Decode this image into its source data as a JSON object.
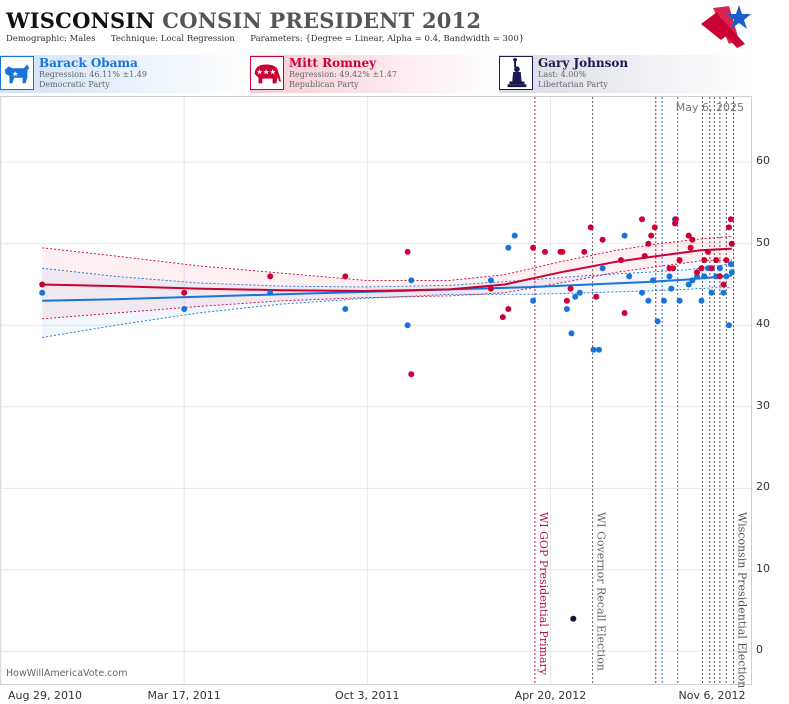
{
  "header": {
    "title_part1": "WISCONSIN",
    "title_part2": "CONSIN PRESIDENT 2012",
    "demographic_label": "Demographic:",
    "demographic_value": "Males",
    "technique_label": "Technique:",
    "technique_value": "Local Regression",
    "parameters_label": "Parameters:",
    "parameters_value": "{Degree = Linear, Alpha = 0.4, Bandwidth = 300}"
  },
  "candidates": [
    {
      "name": "Barack Obama",
      "stat": "Regression: 46.11% ±1.49",
      "party": "Democratic Party",
      "color": "#1a73d9",
      "bg": "#dbe9fa",
      "icon": "donkey-icon"
    },
    {
      "name": "Mitt Romney",
      "stat": "Regression: 49.42% ±1.47",
      "party": "Republican Party",
      "color": "#cc0033",
      "bg": "#fae0e6",
      "icon": "elephant-icon"
    },
    {
      "name": "Gary Johnson",
      "stat": "Last: 4.00%",
      "party": "Libertarian Party",
      "color": "#1a1a4e",
      "bg": "#e6e6ee",
      "icon": "statue-of-liberty-icon"
    }
  ],
  "date_stamp": "May 6, 2025",
  "credit": "HowWillAmericaVote.com",
  "chart_data": {
    "type": "scatter",
    "x_axis": {
      "type": "date",
      "range": [
        "2010-08-29",
        "2012-11-25"
      ],
      "tick_labels": [
        "Aug 29, 2010",
        "Mar 17, 2011",
        "Oct 3, 2011",
        "Apr 20, 2012",
        "Nov 6, 2012"
      ],
      "tick_values": [
        "2010-08-29",
        "2011-03-17",
        "2011-10-03",
        "2012-04-20",
        "2012-11-06"
      ]
    },
    "y_axis": {
      "range": [
        -4,
        68
      ],
      "ticks": [
        0,
        10,
        20,
        30,
        40,
        50,
        60
      ]
    },
    "grid": true,
    "events": [
      {
        "date": "2012-04-03",
        "label": "WI GOP Presidential Primary",
        "color": "#b3164a"
      },
      {
        "date": "2012-06-05",
        "label": "WI Governor Recall Election",
        "color": "#666666"
      },
      {
        "date": "2012-11-06",
        "label": "Wisconsin Presidential Election",
        "color": "#555555"
      }
    ],
    "extra_lines": [
      {
        "date": "2012-08-13",
        "color": "#b3164a"
      },
      {
        "date": "2012-08-20",
        "color": "#1a73d9"
      },
      {
        "date": "2012-09-06",
        "color": "#1a73d9"
      },
      {
        "date": "2012-10-03",
        "color": "#555555"
      },
      {
        "date": "2012-10-11",
        "color": "#555555"
      },
      {
        "date": "2012-10-16",
        "color": "#555555"
      },
      {
        "date": "2012-10-22",
        "color": "#555555"
      },
      {
        "date": "2012-10-29",
        "color": "#555555"
      }
    ],
    "series": [
      {
        "name": "Barack Obama",
        "color": "#1a73d9",
        "points": [
          [
            "2010-10-13",
            44
          ],
          [
            "2011-03-17",
            42
          ],
          [
            "2011-06-19",
            44
          ],
          [
            "2011-09-09",
            42
          ],
          [
            "2011-11-16",
            40
          ],
          [
            "2011-11-20",
            45.5
          ],
          [
            "2012-02-15",
            45.5
          ],
          [
            "2012-03-05",
            49.5
          ],
          [
            "2012-03-12",
            51
          ],
          [
            "2012-04-01",
            43
          ],
          [
            "2012-05-08",
            42
          ],
          [
            "2012-05-13",
            39
          ],
          [
            "2012-05-17",
            43.5
          ],
          [
            "2012-05-22",
            44
          ],
          [
            "2012-06-06",
            37
          ],
          [
            "2012-06-12",
            37
          ],
          [
            "2012-06-16",
            47
          ],
          [
            "2012-07-10",
            51
          ],
          [
            "2012-07-15",
            46
          ],
          [
            "2012-07-29",
            44
          ],
          [
            "2012-08-05",
            43
          ],
          [
            "2012-08-10",
            45.5
          ],
          [
            "2012-08-15",
            40.5
          ],
          [
            "2012-08-22",
            43
          ],
          [
            "2012-08-28",
            46
          ],
          [
            "2012-08-30",
            44.5
          ],
          [
            "2012-09-03",
            53
          ],
          [
            "2012-09-08",
            43
          ],
          [
            "2012-09-18",
            45
          ],
          [
            "2012-09-22",
            45.5
          ],
          [
            "2012-09-27",
            46
          ],
          [
            "2012-10-02",
            43
          ],
          [
            "2012-10-05",
            46
          ],
          [
            "2012-10-09",
            47
          ],
          [
            "2012-10-13",
            44
          ],
          [
            "2012-10-18",
            46
          ],
          [
            "2012-10-22",
            47
          ],
          [
            "2012-10-26",
            44
          ],
          [
            "2012-10-29",
            46
          ],
          [
            "2012-11-01",
            40
          ],
          [
            "2012-11-03",
            47.5
          ],
          [
            "2012-11-04",
            46.5
          ]
        ],
        "trend": [
          [
            "2010-10-13",
            43
          ],
          [
            "2011-01-01",
            43.2
          ],
          [
            "2011-04-01",
            43.5
          ],
          [
            "2011-07-01",
            43.8
          ],
          [
            "2011-10-01",
            44.1
          ],
          [
            "2012-01-01",
            44.4
          ],
          [
            "2012-04-01",
            44.7
          ],
          [
            "2012-06-01",
            45.0
          ],
          [
            "2012-08-01",
            45.3
          ],
          [
            "2012-09-15",
            45.6
          ],
          [
            "2012-10-15",
            45.9
          ],
          [
            "2012-11-04",
            46.1
          ]
        ],
        "band_upper": [
          [
            "2010-10-13",
            47
          ],
          [
            "2011-01-01",
            46
          ],
          [
            "2011-04-01",
            45.2
          ],
          [
            "2011-07-01",
            44.8
          ],
          [
            "2011-10-01",
            44.7
          ],
          [
            "2012-01-01",
            44.9
          ],
          [
            "2012-04-01",
            45.6
          ],
          [
            "2012-06-01",
            46.1
          ],
          [
            "2012-08-01",
            46.5
          ],
          [
            "2012-09-15",
            46.8
          ],
          [
            "2012-10-15",
            47.2
          ],
          [
            "2012-11-04",
            47.6
          ]
        ],
        "band_lower": [
          [
            "2010-10-13",
            38.5
          ],
          [
            "2011-01-01",
            40.0
          ],
          [
            "2011-04-01",
            41.5
          ],
          [
            "2011-07-01",
            42.6
          ],
          [
            "2011-10-01",
            43.3
          ],
          [
            "2012-01-01",
            43.8
          ],
          [
            "2012-04-01",
            43.8
          ],
          [
            "2012-06-01",
            44.0
          ],
          [
            "2012-08-01",
            44.2
          ],
          [
            "2012-09-15",
            44.4
          ],
          [
            "2012-10-15",
            44.6
          ],
          [
            "2012-11-04",
            44.6
          ]
        ]
      },
      {
        "name": "Mitt Romney",
        "color": "#cc0033",
        "points": [
          [
            "2010-10-13",
            45
          ],
          [
            "2011-03-17",
            44
          ],
          [
            "2011-06-19",
            46
          ],
          [
            "2011-09-09",
            46
          ],
          [
            "2011-11-16",
            49
          ],
          [
            "2011-11-20",
            34
          ],
          [
            "2012-02-15",
            44.5
          ],
          [
            "2012-02-28",
            41
          ],
          [
            "2012-03-05",
            42
          ],
          [
            "2012-04-01",
            49.5
          ],
          [
            "2012-04-14",
            49
          ],
          [
            "2012-05-01",
            49
          ],
          [
            "2012-05-03",
            49
          ],
          [
            "2012-05-08",
            43
          ],
          [
            "2012-05-12",
            44.5
          ],
          [
            "2012-05-27",
            49
          ],
          [
            "2012-06-03",
            52
          ],
          [
            "2012-06-09",
            43.5
          ],
          [
            "2012-06-16",
            50.5
          ],
          [
            "2012-07-06",
            48
          ],
          [
            "2012-07-10",
            41.5
          ],
          [
            "2012-07-29",
            53
          ],
          [
            "2012-08-01",
            48.5
          ],
          [
            "2012-08-05",
            50
          ],
          [
            "2012-08-08",
            51
          ],
          [
            "2012-08-12",
            52
          ],
          [
            "2012-08-28",
            47
          ],
          [
            "2012-09-01",
            47
          ],
          [
            "2012-09-03",
            52.5
          ],
          [
            "2012-09-04",
            53
          ],
          [
            "2012-09-08",
            48
          ],
          [
            "2012-09-18",
            51
          ],
          [
            "2012-09-20",
            49.5
          ],
          [
            "2012-09-22",
            50.5
          ],
          [
            "2012-09-27",
            46.5
          ],
          [
            "2012-10-02",
            47
          ],
          [
            "2012-10-05",
            48
          ],
          [
            "2012-10-09",
            49
          ],
          [
            "2012-10-13",
            47
          ],
          [
            "2012-10-18",
            48
          ],
          [
            "2012-10-22",
            46
          ],
          [
            "2012-10-26",
            45
          ],
          [
            "2012-10-29",
            48
          ],
          [
            "2012-11-01",
            52
          ],
          [
            "2012-11-03",
            53
          ],
          [
            "2012-11-04",
            50
          ]
        ],
        "trend": [
          [
            "2010-10-13",
            45
          ],
          [
            "2011-01-01",
            44.8
          ],
          [
            "2011-04-01",
            44.5
          ],
          [
            "2011-07-01",
            44.3
          ],
          [
            "2011-10-01",
            44.2
          ],
          [
            "2012-01-01",
            44.4
          ],
          [
            "2012-03-01",
            45.0
          ],
          [
            "2012-05-01",
            46.5
          ],
          [
            "2012-07-01",
            47.8
          ],
          [
            "2012-08-15",
            48.5
          ],
          [
            "2012-10-01",
            49.2
          ],
          [
            "2012-11-04",
            49.4
          ]
        ],
        "band_upper": [
          [
            "2010-10-13",
            49.5
          ],
          [
            "2011-01-01",
            48.5
          ],
          [
            "2011-04-01",
            47.3
          ],
          [
            "2011-07-01",
            46.4
          ],
          [
            "2011-10-01",
            45.5
          ],
          [
            "2012-01-01",
            45.5
          ],
          [
            "2012-03-01",
            46.2
          ],
          [
            "2012-05-01",
            47.8
          ],
          [
            "2012-07-01",
            49.2
          ],
          [
            "2012-08-15",
            50.0
          ],
          [
            "2012-10-01",
            50.6
          ],
          [
            "2012-11-04",
            50.9
          ]
        ],
        "band_lower": [
          [
            "2010-10-13",
            40.8
          ],
          [
            "2011-01-01",
            41.5
          ],
          [
            "2011-04-01",
            42.3
          ],
          [
            "2011-07-01",
            43.0
          ],
          [
            "2011-10-01",
            43.4
          ],
          [
            "2012-01-01",
            43.6
          ],
          [
            "2012-03-01",
            44.0
          ],
          [
            "2012-05-01",
            45.2
          ],
          [
            "2012-07-01",
            46.5
          ],
          [
            "2012-08-15",
            47.2
          ],
          [
            "2012-10-01",
            47.9
          ],
          [
            "2012-11-04",
            48.0
          ]
        ]
      },
      {
        "name": "Gary Johnson",
        "color": "#111144",
        "points": [
          [
            "2012-05-15",
            4
          ]
        ]
      }
    ]
  }
}
